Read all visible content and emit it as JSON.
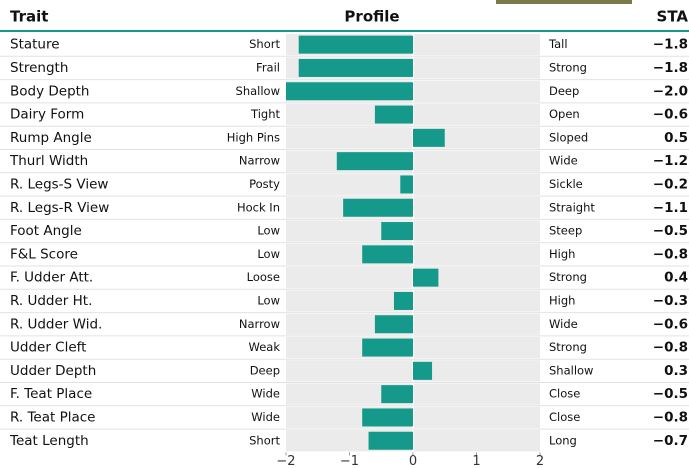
{
  "chart_data": {
    "type": "bar",
    "orientation": "horizontal",
    "category_header": "Trait",
    "title": "Profile",
    "value_header": "STA",
    "categories": [
      "Stature",
      "Strength",
      "Body Depth",
      "Dairy Form",
      "Rump Angle",
      "Thurl Width",
      "R. Legs-S View",
      "R. Legs-R View",
      "Foot Angle",
      "F&L Score",
      "F. Udder Att.",
      "R. Udder Ht.",
      "R. Udder Wid.",
      "Udder Cleft",
      "Udder Depth",
      "F. Teat Place",
      "R. Teat Place",
      "Teat Length"
    ],
    "low_labels": [
      "Short",
      "Frail",
      "Shallow",
      "Tight",
      "High Pins",
      "Narrow",
      "Posty",
      "Hock In",
      "Low",
      "Low",
      "Loose",
      "Low",
      "Narrow",
      "Weak",
      "Deep",
      "Wide",
      "Wide",
      "Short"
    ],
    "high_labels": [
      "Tall",
      "Strong",
      "Deep",
      "Open",
      "Sloped",
      "Wide",
      "Sickle",
      "Straight",
      "Steep",
      "High",
      "Strong",
      "High",
      "Wide",
      "Strong",
      "Shallow",
      "Close",
      "Close",
      "Long"
    ],
    "values": [
      -1.8,
      -1.8,
      -2.0,
      -0.6,
      0.5,
      -1.2,
      -0.2,
      -1.1,
      -0.5,
      -0.8,
      0.4,
      -0.3,
      -0.6,
      -0.8,
      0.3,
      -0.5,
      -0.8,
      -0.7
    ],
    "value_labels": [
      "−1.8",
      "−1.8",
      "−2.0",
      "−0.6",
      "0.5",
      "−1.2",
      "−0.2",
      "−1.1",
      "−0.5",
      "−0.8",
      "0.4",
      "−0.3",
      "−0.6",
      "−0.8",
      "0.3",
      "−0.5",
      "−0.8",
      "−0.7"
    ],
    "color": "#14998b",
    "xlim": [
      -2,
      2
    ],
    "xticks": [
      {
        "value": -2,
        "label": "−2"
      },
      {
        "value": -1,
        "label": "−1"
      },
      0,
      1,
      2
    ]
  }
}
